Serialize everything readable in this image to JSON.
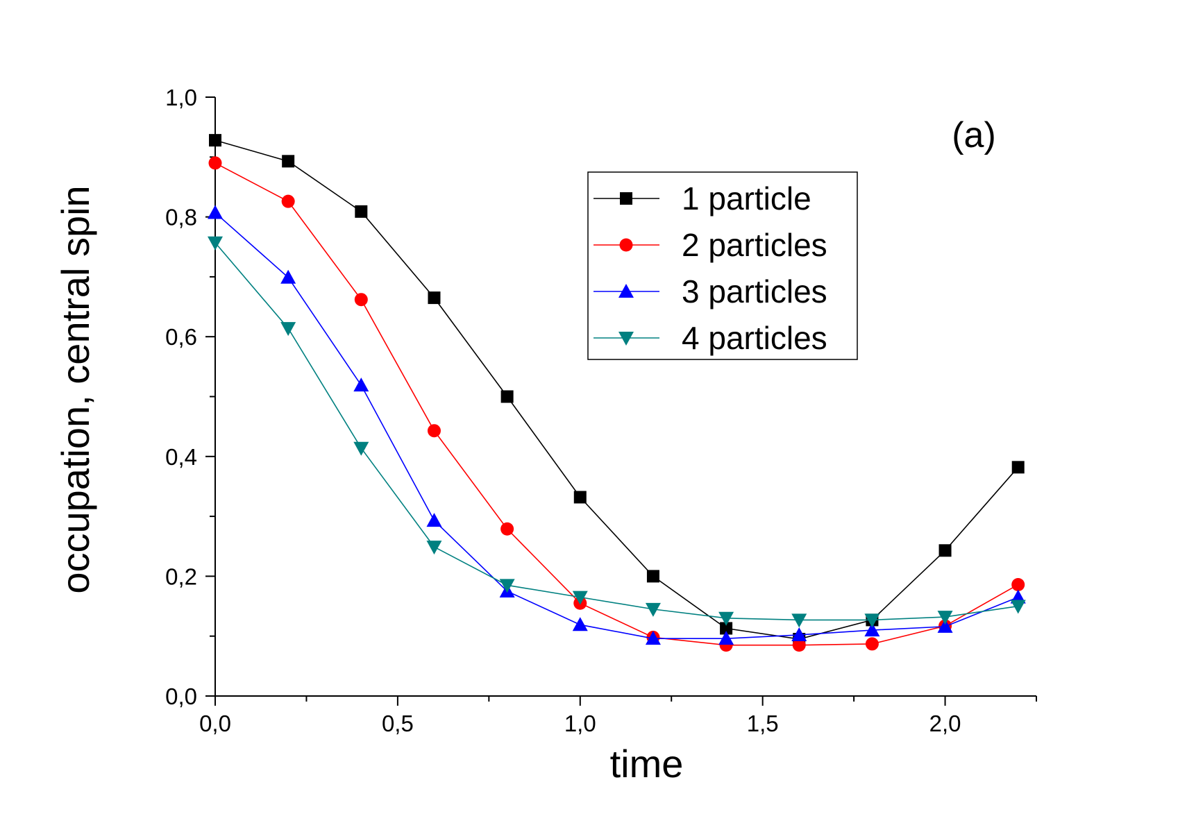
{
  "chart_data": {
    "type": "line",
    "title": "",
    "panel_label": "(a)",
    "xlabel": "time",
    "ylabel": "occupation, central spin",
    "xlim": [
      0,
      2.25
    ],
    "ylim": [
      0,
      1.0
    ],
    "x_ticks": [
      {
        "value": 0.0,
        "label": "0,0"
      },
      {
        "value": 0.5,
        "label": "0,5"
      },
      {
        "value": 1.0,
        "label": "1,0"
      },
      {
        "value": 1.5,
        "label": "1,5"
      },
      {
        "value": 2.0,
        "label": "2,0"
      }
    ],
    "y_ticks": [
      {
        "value": 0.0,
        "label": "0,0"
      },
      {
        "value": 0.2,
        "label": "0,2"
      },
      {
        "value": 0.4,
        "label": "0,4"
      },
      {
        "value": 0.6,
        "label": "0,6"
      },
      {
        "value": 0.8,
        "label": "0,8"
      },
      {
        "value": 1.0,
        "label": "1,0"
      }
    ],
    "x_minor_step": 0.25,
    "y_minor_step": 0.1,
    "grid": false,
    "legend_position": "top-right",
    "x": [
      0.0,
      0.2,
      0.4,
      0.6,
      0.8,
      1.0,
      1.2,
      1.4,
      1.6,
      1.8,
      2.0,
      2.2
    ],
    "series": [
      {
        "name": "1 particle",
        "color": "#000000",
        "marker": "square",
        "values": [
          0.928,
          0.893,
          0.809,
          0.665,
          0.5,
          0.332,
          0.2,
          0.113,
          0.095,
          0.127,
          0.243,
          0.382
        ]
      },
      {
        "name": "2 particles",
        "color": "#ff0000",
        "marker": "circle",
        "values": [
          0.89,
          0.826,
          0.662,
          0.443,
          0.279,
          0.155,
          0.098,
          0.085,
          0.085,
          0.087,
          0.117,
          0.186
        ]
      },
      {
        "name": "3 particles",
        "color": "#0000ff",
        "marker": "triangle-up",
        "values": [
          0.807,
          0.699,
          0.519,
          0.293,
          0.175,
          0.119,
          0.096,
          0.096,
          0.102,
          0.11,
          0.116,
          0.165
        ]
      },
      {
        "name": "4 particles",
        "color": "#008080",
        "marker": "triangle-down",
        "values": [
          0.757,
          0.614,
          0.414,
          0.249,
          0.185,
          0.165,
          0.145,
          0.13,
          0.127,
          0.127,
          0.132,
          0.15
        ]
      }
    ]
  }
}
